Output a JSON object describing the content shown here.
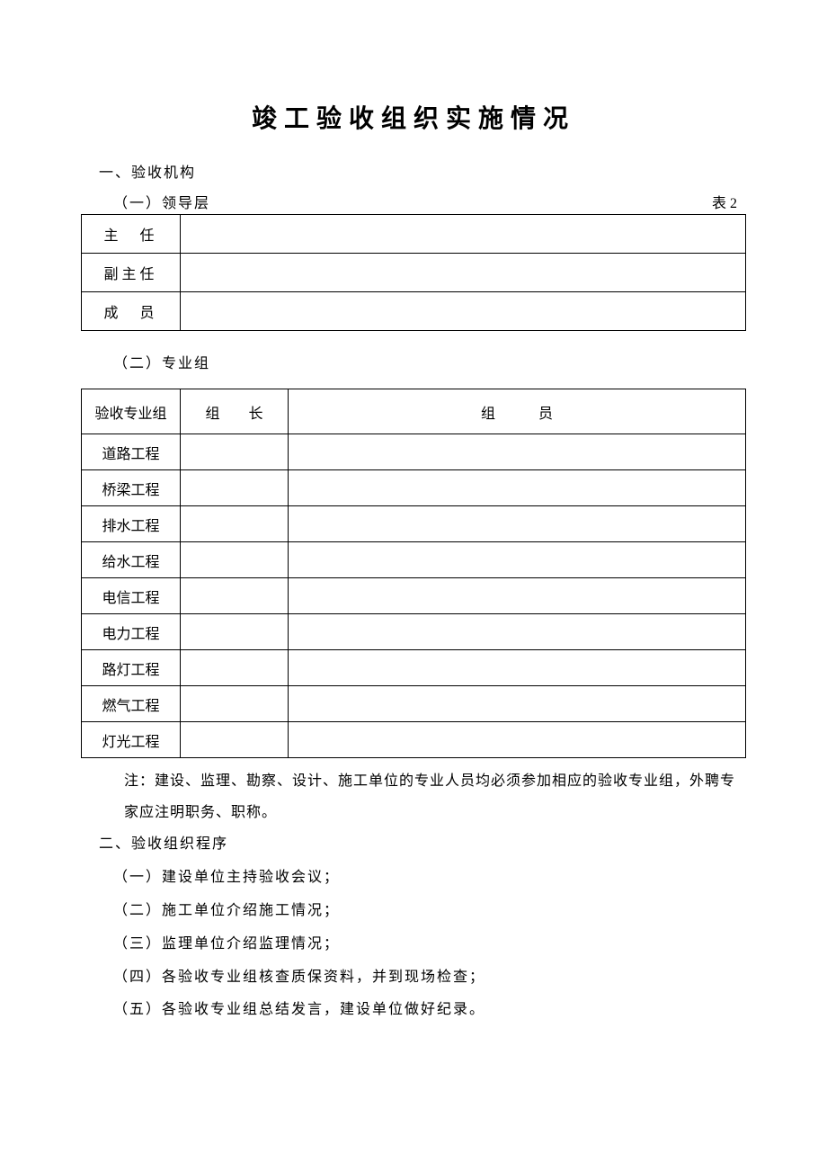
{
  "title": "竣工验收组织实施情况",
  "section1": {
    "heading": "一、验收机构",
    "sub1": {
      "label": "（一）领导层",
      "tableNumber": "表 2",
      "rows": [
        {
          "label": "主　任",
          "value": ""
        },
        {
          "label": "副主任",
          "value": ""
        },
        {
          "label": "成　员",
          "value": ""
        }
      ]
    },
    "sub2": {
      "label": "（二）专业组",
      "headers": {
        "col1": "验收专业组",
        "col2": "组　　长",
        "col3": "组　　　员"
      },
      "rows": [
        {
          "name": "道路工程",
          "leader": "",
          "members": ""
        },
        {
          "name": "桥梁工程",
          "leader": "",
          "members": ""
        },
        {
          "name": "排水工程",
          "leader": "",
          "members": ""
        },
        {
          "name": "给水工程",
          "leader": "",
          "members": ""
        },
        {
          "name": "电信工程",
          "leader": "",
          "members": ""
        },
        {
          "name": "电力工程",
          "leader": "",
          "members": ""
        },
        {
          "name": "路灯工程",
          "leader": "",
          "members": ""
        },
        {
          "name": "燃气工程",
          "leader": "",
          "members": ""
        },
        {
          "name": "灯光工程",
          "leader": "",
          "members": ""
        }
      ],
      "note": "注：建设、监理、勘察、设计、施工单位的专业人员均必须参加相应的验收专业组，外聘专家应注明职务、职称。"
    }
  },
  "section2": {
    "heading": "二、验收组织程序",
    "items": [
      "（一）建设单位主持验收会议；",
      "（二）施工单位介绍施工情况；",
      "（三）监理单位介绍监理情况；",
      "（四）各验收专业组核查质保资料，并到现场检查；",
      "（五）各验收专业组总结发言，建设单位做好纪录。"
    ]
  },
  "styling": {
    "text_color": "#000000",
    "background_color": "#ffffff",
    "border_color": "#000000",
    "title_fontsize": 28,
    "body_fontsize": 16,
    "font_family": "SimSun"
  }
}
